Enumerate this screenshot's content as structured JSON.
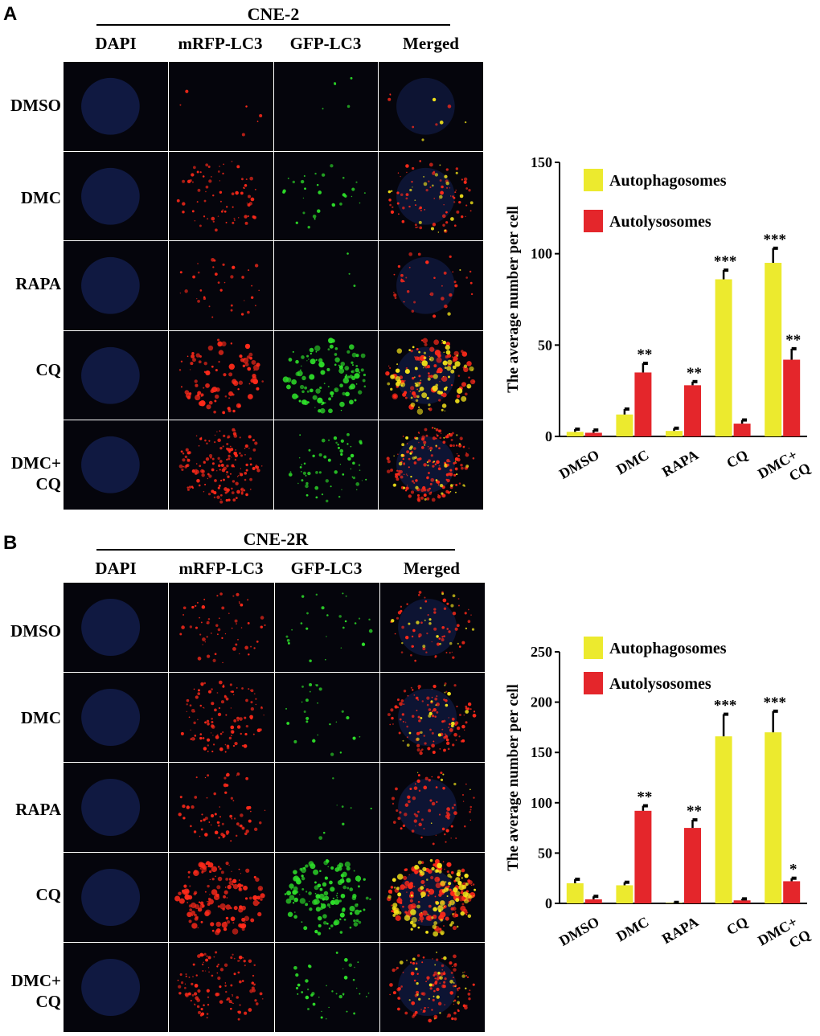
{
  "panels": [
    {
      "letter": "A",
      "cell_line": "CNE-2",
      "columns": [
        "DAPI",
        "mRFP-LC3",
        "GFP-LC3",
        "Merged"
      ],
      "rows": [
        {
          "label_lines": [
            "DMSO"
          ]
        },
        {
          "label_lines": [
            "DMC"
          ]
        },
        {
          "label_lines": [
            "RAPA"
          ]
        },
        {
          "label_lines": [
            "CQ"
          ]
        },
        {
          "label_lines": [
            "DMC+",
            "CQ"
          ]
        }
      ]
    },
    {
      "letter": "B",
      "cell_line": "CNE-2R",
      "columns": [
        "DAPI",
        "mRFP-LC3",
        "GFP-LC3",
        "Merged"
      ],
      "rows": [
        {
          "label_lines": [
            "DMSO"
          ]
        },
        {
          "label_lines": [
            "DMC"
          ]
        },
        {
          "label_lines": [
            "RAPA"
          ]
        },
        {
          "label_lines": [
            "CQ"
          ]
        },
        {
          "label_lines": [
            "DMC+",
            "CQ"
          ]
        }
      ]
    }
  ],
  "colors": {
    "autophagosomes": "#ecea2e",
    "autolysosomes": "#e4262b",
    "dapi": "#1a2a6e",
    "rfp": "#ff2a1a",
    "gfp": "#2ee02a",
    "merged_yellow": "#f5e51a"
  },
  "chart_data": [
    {
      "type": "bar",
      "ylabel": "The average number per cell",
      "ylim": [
        0,
        150
      ],
      "yticks": [
        0,
        50,
        100,
        150
      ],
      "categories": [
        "DMSO",
        "DMC",
        "RAPA",
        "CQ",
        "DMC+\nCQ"
      ],
      "series": [
        {
          "name": "Autophagosomes",
          "color": "#ecea2e",
          "values": [
            2.5,
            12,
            3,
            86,
            95
          ],
          "errors": [
            1.5,
            3,
            1.5,
            5,
            8
          ],
          "significance": [
            "",
            "",
            "",
            "***",
            "***"
          ]
        },
        {
          "name": "Autolysosomes",
          "color": "#e4262b",
          "values": [
            2,
            35,
            28,
            7,
            42
          ],
          "errors": [
            1.5,
            5,
            2,
            2,
            6
          ],
          "significance": [
            "",
            "**",
            "**",
            "",
            "**"
          ]
        }
      ],
      "legend": "top-left"
    },
    {
      "type": "bar",
      "ylabel": "The average number per cell",
      "ylim": [
        0,
        250
      ],
      "yticks": [
        0,
        50,
        100,
        150,
        200,
        250
      ],
      "categories": [
        "DMSO",
        "DMC",
        "RAPA",
        "CQ",
        "DMC+\nCQ"
      ],
      "series": [
        {
          "name": "Autophagosomes",
          "color": "#ecea2e",
          "values": [
            20,
            18,
            0.5,
            166,
            170
          ],
          "errors": [
            4,
            3,
            0.5,
            22,
            21
          ],
          "significance": [
            "",
            "",
            "",
            "***",
            "***"
          ]
        },
        {
          "name": "Autolysosomes",
          "color": "#e4262b",
          "values": [
            4,
            92,
            75,
            3,
            22
          ],
          "errors": [
            3,
            5,
            8,
            1.5,
            3
          ],
          "significance": [
            "",
            "**",
            "**",
            "",
            "*"
          ]
        }
      ],
      "legend": "top-left"
    }
  ]
}
